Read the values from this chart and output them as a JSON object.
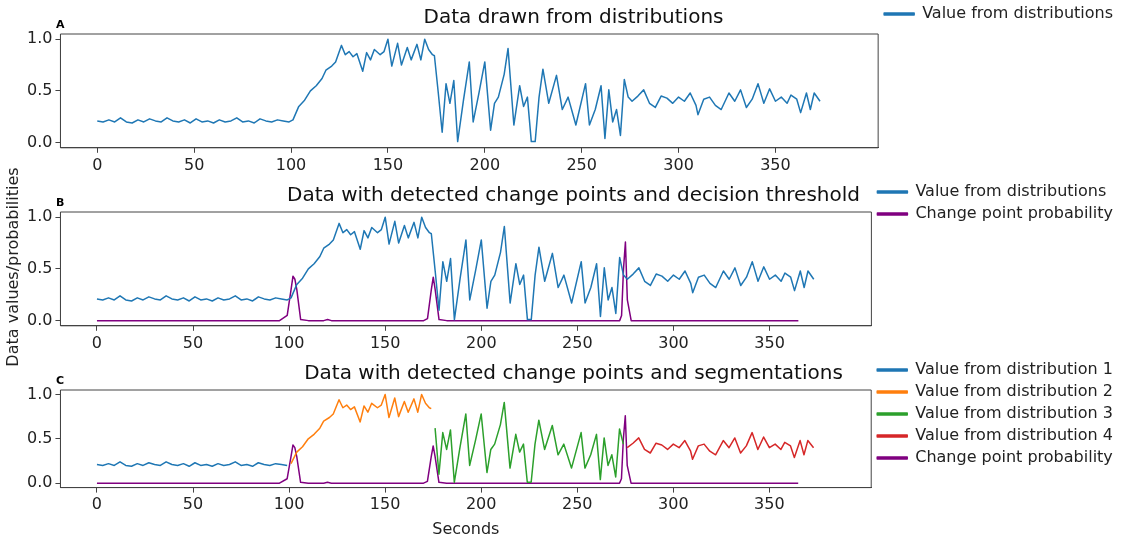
{
  "chart_data": [
    {
      "type": "line",
      "title": "Data drawn from distributions",
      "annotations": [
        "A"
      ],
      "legend": "top right",
      "grid": false,
      "xlim": [
        -19,
        403
      ],
      "xticks": [
        0,
        50,
        100,
        150,
        200,
        250,
        300,
        350
      ],
      "ylim": [
        -0.05,
        1.05
      ],
      "yticks": [
        {
          "value": 0,
          "label": "0.0"
        },
        {
          "value": 0.5,
          "label": "0.5"
        },
        {
          "value": 1,
          "label": "1.0"
        }
      ],
      "series": [
        {
          "name": "Value from distributions",
          "color": "#1f77b4",
          "x": [
            0,
            3,
            6,
            9,
            12,
            15,
            18,
            21,
            24,
            27,
            30,
            33,
            36,
            39,
            42,
            45,
            48,
            51,
            54,
            57,
            60,
            63,
            66,
            69,
            72,
            75,
            78,
            81,
            84,
            87,
            90,
            93,
            96,
            99,
            101,
            104,
            107,
            110,
            113,
            116,
            118,
            121,
            123,
            126,
            128,
            130,
            132,
            134,
            137,
            139,
            141,
            143,
            146,
            148,
            150,
            152,
            155,
            157,
            160,
            162,
            165,
            167,
            169,
            171,
            173,
            174,
            176,
            178,
            180,
            182,
            184,
            186,
            189,
            192,
            194,
            197,
            200,
            203,
            205,
            207,
            210,
            212,
            215,
            218,
            220,
            222,
            224,
            226,
            228,
            230,
            233,
            237,
            240,
            243,
            247,
            252,
            254,
            257,
            260,
            262,
            264,
            266,
            268,
            270,
            272,
            274,
            276,
            279,
            282,
            285,
            288,
            291,
            294,
            297,
            300,
            303,
            306,
            309,
            310,
            313,
            316,
            319,
            322,
            326,
            329,
            332,
            335,
            338,
            341,
            344,
            347,
            350,
            353,
            356,
            358,
            361,
            363,
            366,
            368,
            370,
            373
          ],
          "values": [
            0.21,
            0.2,
            0.22,
            0.2,
            0.24,
            0.2,
            0.19,
            0.22,
            0.2,
            0.23,
            0.21,
            0.2,
            0.24,
            0.21,
            0.2,
            0.22,
            0.19,
            0.23,
            0.2,
            0.21,
            0.19,
            0.22,
            0.2,
            0.21,
            0.24,
            0.2,
            0.21,
            0.19,
            0.23,
            0.21,
            0.2,
            0.22,
            0.21,
            0.2,
            0.22,
            0.35,
            0.41,
            0.5,
            0.55,
            0.62,
            0.7,
            0.74,
            0.78,
            0.94,
            0.85,
            0.88,
            0.83,
            0.86,
            0.69,
            0.87,
            0.8,
            0.9,
            0.85,
            0.88,
            1.0,
            0.74,
            0.96,
            0.75,
            0.92,
            0.8,
            0.95,
            0.8,
            1.0,
            0.9,
            0.85,
            0.84,
            0.48,
            0.1,
            0.57,
            0.38,
            0.6,
            0.01,
            0.41,
            0.78,
            0.2,
            0.48,
            0.78,
            0.12,
            0.38,
            0.44,
            0.66,
            0.91,
            0.17,
            0.55,
            0.35,
            0.44,
            0.01,
            0.01,
            0.44,
            0.71,
            0.38,
            0.65,
            0.32,
            0.44,
            0.17,
            0.57,
            0.17,
            0.32,
            0.55,
            0.04,
            0.51,
            0.2,
            0.32,
            0.07,
            0.61,
            0.44,
            0.4,
            0.45,
            0.51,
            0.38,
            0.34,
            0.45,
            0.43,
            0.38,
            0.44,
            0.4,
            0.48,
            0.36,
            0.27,
            0.42,
            0.44,
            0.36,
            0.32,
            0.48,
            0.4,
            0.51,
            0.34,
            0.42,
            0.57,
            0.38,
            0.52,
            0.4,
            0.44,
            0.38,
            0.46,
            0.42,
            0.29,
            0.48,
            0.32,
            0.48,
            0.4
          ]
        }
      ]
    },
    {
      "type": "line",
      "title": "Data with detected change points and decision threshold",
      "annotations": [
        "B"
      ],
      "ylabel": "Data values/probabilities",
      "legend": "top right",
      "grid": false,
      "xlim": [
        -19,
        403
      ],
      "xticks": [
        0,
        50,
        100,
        150,
        200,
        250,
        300,
        350
      ],
      "ylim": [
        -0.05,
        1.05
      ],
      "yticks": [
        {
          "value": 0,
          "label": "0.0"
        },
        {
          "value": 0.5,
          "label": "0.5"
        },
        {
          "value": 1,
          "label": "1.0"
        }
      ],
      "series": [
        {
          "name": "Value from distributions",
          "color": "#1f77b4",
          "x": [
            0,
            3,
            6,
            9,
            12,
            15,
            18,
            21,
            24,
            27,
            30,
            33,
            36,
            39,
            42,
            45,
            48,
            51,
            54,
            57,
            60,
            63,
            66,
            69,
            72,
            75,
            78,
            81,
            84,
            87,
            90,
            93,
            96,
            99,
            101,
            104,
            107,
            110,
            113,
            116,
            118,
            121,
            123,
            126,
            128,
            130,
            132,
            134,
            137,
            139,
            141,
            143,
            146,
            148,
            150,
            152,
            155,
            157,
            160,
            162,
            165,
            167,
            169,
            171,
            173,
            174,
            176,
            178,
            180,
            182,
            184,
            186,
            189,
            192,
            194,
            197,
            200,
            203,
            205,
            207,
            210,
            212,
            215,
            218,
            220,
            222,
            224,
            226,
            228,
            230,
            233,
            237,
            240,
            243,
            247,
            252,
            254,
            257,
            260,
            262,
            264,
            266,
            268,
            270,
            272,
            274,
            276,
            279,
            282,
            285,
            288,
            291,
            294,
            297,
            300,
            303,
            306,
            309,
            310,
            313,
            316,
            319,
            322,
            326,
            329,
            332,
            335,
            338,
            341,
            344,
            347,
            350,
            353,
            356,
            358,
            361,
            363,
            366,
            368,
            370,
            373
          ],
          "values": [
            0.21,
            0.2,
            0.22,
            0.2,
            0.24,
            0.2,
            0.19,
            0.22,
            0.2,
            0.23,
            0.21,
            0.2,
            0.24,
            0.21,
            0.2,
            0.22,
            0.19,
            0.23,
            0.2,
            0.21,
            0.19,
            0.22,
            0.2,
            0.21,
            0.24,
            0.2,
            0.21,
            0.19,
            0.23,
            0.21,
            0.2,
            0.22,
            0.21,
            0.2,
            0.22,
            0.35,
            0.41,
            0.5,
            0.55,
            0.62,
            0.7,
            0.74,
            0.78,
            0.94,
            0.85,
            0.88,
            0.83,
            0.86,
            0.69,
            0.87,
            0.8,
            0.9,
            0.85,
            0.88,
            1.0,
            0.74,
            0.96,
            0.75,
            0.92,
            0.8,
            0.95,
            0.8,
            1.0,
            0.9,
            0.85,
            0.84,
            0.48,
            0.1,
            0.57,
            0.38,
            0.6,
            0.01,
            0.41,
            0.78,
            0.2,
            0.48,
            0.78,
            0.12,
            0.38,
            0.44,
            0.66,
            0.91,
            0.17,
            0.55,
            0.35,
            0.44,
            0.01,
            0.01,
            0.44,
            0.71,
            0.38,
            0.65,
            0.32,
            0.44,
            0.17,
            0.57,
            0.17,
            0.32,
            0.55,
            0.04,
            0.51,
            0.2,
            0.32,
            0.07,
            0.61,
            0.44,
            0.4,
            0.45,
            0.51,
            0.38,
            0.34,
            0.45,
            0.43,
            0.38,
            0.44,
            0.4,
            0.48,
            0.36,
            0.27,
            0.42,
            0.44,
            0.36,
            0.32,
            0.48,
            0.4,
            0.51,
            0.34,
            0.42,
            0.57,
            0.38,
            0.52,
            0.4,
            0.44,
            0.38,
            0.46,
            0.42,
            0.29,
            0.48,
            0.32,
            0.48,
            0.4
          ]
        },
        {
          "name": "Change point probability",
          "color": "#800080",
          "x": [
            0,
            95,
            99,
            101,
            102,
            103,
            104,
            106,
            110,
            118,
            120,
            122,
            130,
            170,
            172,
            174,
            175,
            176,
            178,
            182,
            272,
            273,
            274,
            275,
            276,
            278,
            365
          ],
          "values": [
            0,
            0,
            0.05,
            0.3,
            0.43,
            0.4,
            0.3,
            0.01,
            0,
            0,
            0.01,
            0,
            0,
            0,
            0.02,
            0.3,
            0.42,
            0.3,
            0.01,
            0,
            0,
            0.05,
            0.5,
            0.76,
            0.2,
            0,
            0
          ]
        }
      ]
    },
    {
      "type": "line",
      "title": "Data with detected change points and segmentations",
      "annotations": [
        "C"
      ],
      "xlabel": "Seconds",
      "legend": "top right",
      "grid": false,
      "xlim": [
        -19,
        403
      ],
      "xticks": [
        0,
        50,
        100,
        150,
        200,
        250,
        300,
        350
      ],
      "ylim": [
        -0.05,
        1.05
      ],
      "yticks": [
        {
          "value": 0,
          "label": "0.0"
        },
        {
          "value": 0.5,
          "label": "0.5"
        },
        {
          "value": 1,
          "label": "1.0"
        }
      ],
      "series": [
        {
          "name": "Value from distribution 1",
          "color": "#1f77b4",
          "x": [
            0,
            3,
            6,
            9,
            12,
            15,
            18,
            21,
            24,
            27,
            30,
            33,
            36,
            39,
            42,
            45,
            48,
            51,
            54,
            57,
            60,
            63,
            66,
            69,
            72,
            75,
            78,
            81,
            84,
            87,
            90,
            93,
            96,
            99
          ],
          "values": [
            0.21,
            0.2,
            0.22,
            0.2,
            0.24,
            0.2,
            0.19,
            0.22,
            0.2,
            0.23,
            0.21,
            0.2,
            0.24,
            0.21,
            0.2,
            0.22,
            0.19,
            0.23,
            0.2,
            0.21,
            0.19,
            0.22,
            0.2,
            0.21,
            0.24,
            0.2,
            0.21,
            0.19,
            0.23,
            0.21,
            0.2,
            0.22,
            0.21,
            0.2
          ]
        },
        {
          "name": "Value from distribution 2",
          "color": "#ff7f0e",
          "x": [
            101,
            104,
            107,
            110,
            113,
            116,
            118,
            121,
            123,
            126,
            128,
            130,
            132,
            134,
            137,
            139,
            141,
            143,
            146,
            148,
            150,
            152,
            155,
            157,
            160,
            162,
            165,
            167,
            169,
            171,
            173,
            174
          ],
          "values": [
            0.22,
            0.35,
            0.41,
            0.5,
            0.55,
            0.62,
            0.7,
            0.74,
            0.78,
            0.94,
            0.85,
            0.88,
            0.83,
            0.86,
            0.69,
            0.87,
            0.8,
            0.9,
            0.85,
            0.88,
            1.0,
            0.74,
            0.96,
            0.75,
            0.92,
            0.8,
            0.95,
            0.8,
            1.0,
            0.9,
            0.85,
            0.84
          ]
        },
        {
          "name": "Value from distribution 3",
          "color": "#2ca02c",
          "x": [
            176,
            178,
            180,
            182,
            184,
            186,
            189,
            192,
            194,
            197,
            200,
            203,
            205,
            207,
            210,
            212,
            215,
            218,
            220,
            222,
            224,
            226,
            228,
            230,
            233,
            237,
            240,
            243,
            247,
            252,
            254,
            257,
            260,
            262,
            264,
            266,
            268,
            270,
            272,
            274
          ],
          "values": [
            0.62,
            0.1,
            0.57,
            0.38,
            0.6,
            0.01,
            0.41,
            0.78,
            0.2,
            0.48,
            0.78,
            0.12,
            0.38,
            0.44,
            0.66,
            0.91,
            0.17,
            0.55,
            0.35,
            0.44,
            0.01,
            0.01,
            0.44,
            0.71,
            0.38,
            0.65,
            0.32,
            0.44,
            0.17,
            0.57,
            0.17,
            0.32,
            0.55,
            0.04,
            0.51,
            0.2,
            0.32,
            0.07,
            0.61,
            0.44
          ]
        },
        {
          "name": "Value from distribution 4",
          "color": "#d62728",
          "x": [
            276,
            279,
            282,
            285,
            288,
            291,
            294,
            297,
            300,
            303,
            306,
            309,
            310,
            313,
            316,
            319,
            322,
            326,
            329,
            332,
            335,
            338,
            341,
            344,
            347,
            350,
            353,
            356,
            358,
            361,
            363,
            366,
            368,
            370,
            373
          ],
          "values": [
            0.4,
            0.45,
            0.51,
            0.38,
            0.34,
            0.45,
            0.43,
            0.38,
            0.44,
            0.4,
            0.48,
            0.36,
            0.27,
            0.42,
            0.44,
            0.36,
            0.32,
            0.48,
            0.4,
            0.51,
            0.34,
            0.42,
            0.57,
            0.38,
            0.52,
            0.4,
            0.44,
            0.38,
            0.46,
            0.42,
            0.29,
            0.48,
            0.32,
            0.48,
            0.4
          ]
        },
        {
          "name": "Change point probability",
          "color": "#800080",
          "x": [
            0,
            95,
            99,
            101,
            102,
            103,
            104,
            106,
            110,
            118,
            120,
            122,
            130,
            170,
            172,
            174,
            175,
            176,
            178,
            182,
            272,
            273,
            274,
            275,
            276,
            278,
            365
          ],
          "values": [
            0,
            0,
            0.05,
            0.3,
            0.43,
            0.4,
            0.3,
            0.01,
            0,
            0,
            0.01,
            0,
            0,
            0,
            0.02,
            0.3,
            0.42,
            0.3,
            0.01,
            0,
            0,
            0.05,
            0.5,
            0.76,
            0.2,
            0,
            0
          ]
        }
      ]
    }
  ]
}
